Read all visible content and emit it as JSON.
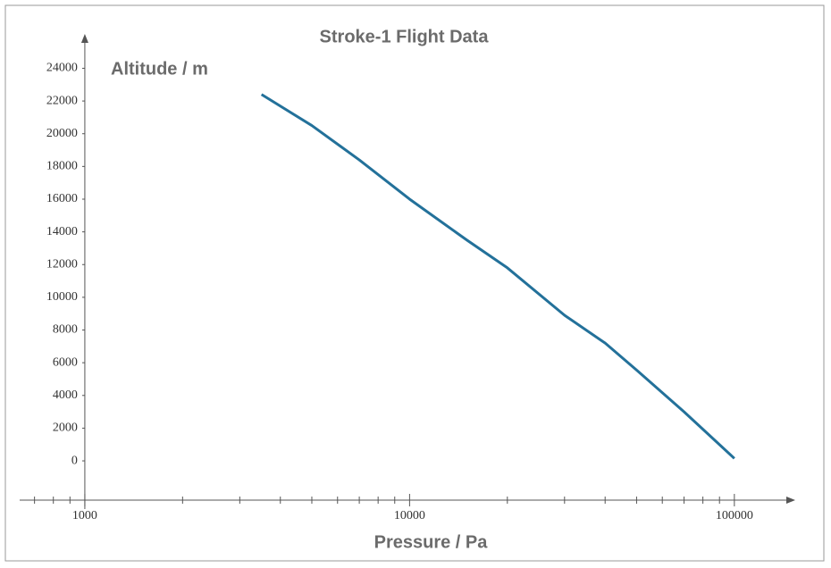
{
  "chart_data": {
    "type": "line",
    "title": "Stroke-1 Flight Data",
    "x_label": "Pressure / Pa",
    "y_label": "Altitude / m",
    "x_scale": "log",
    "x": [
      3500,
      5000,
      7000,
      10000,
      15000,
      20000,
      30000,
      40000,
      50000,
      70000,
      85000,
      100000
    ],
    "series": [
      {
        "name": "Altitude",
        "color": "#23719a",
        "values": [
          22400,
          20500,
          18400,
          16000,
          13500,
          11800,
          8900,
          7200,
          5550,
          3000,
          1450,
          150
        ]
      }
    ],
    "xlim": [
      630,
      154000
    ],
    "xticks": [
      1000,
      10000,
      100000
    ],
    "ylim": [
      -2400,
      26100
    ],
    "yticks": [
      0,
      2000,
      4000,
      6000,
      8000,
      10000,
      12000,
      14000,
      16000,
      18000,
      20000,
      22000,
      24000
    ],
    "grid": false,
    "legend": false
  }
}
